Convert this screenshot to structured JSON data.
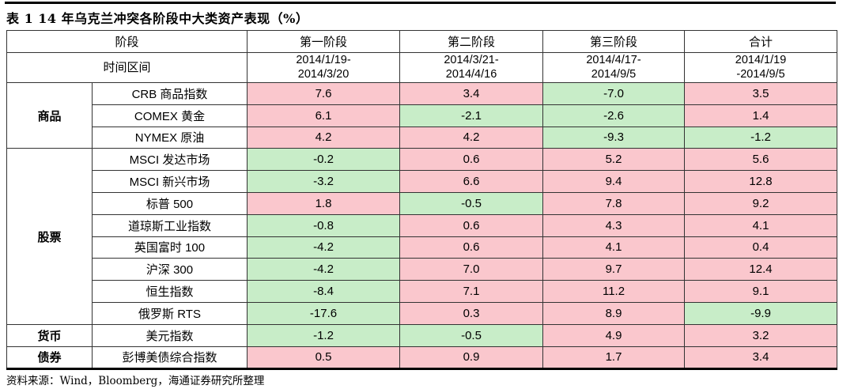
{
  "title": "表 1 14 年乌克兰冲突各阶段中大类资产表现（%）",
  "source_note": "资料来源：Wind，Bloomberg，海通证券研究所整理",
  "colors": {
    "positive_bg": "#fac7cd",
    "positive_text": "#c00000",
    "negative_bg": "#c8edc8",
    "negative_text": "#1e8a1e",
    "border": "#333333",
    "rule": "#000000"
  },
  "table": {
    "stage_header_label": "阶段",
    "period_header_label": "时间区间",
    "stages": [
      {
        "name": "第一阶段",
        "period_line1": "2014/1/19-",
        "period_line2": "2014/3/20"
      },
      {
        "name": "第二阶段",
        "period_line1": "2014/3/21-",
        "period_line2": "2014/4/16"
      },
      {
        "name": "第三阶段",
        "period_line1": "2014/4/17-",
        "period_line2": "2014/9/5"
      },
      {
        "name": "合计",
        "period_line1": "2014/1/19",
        "period_line2": "-2014/9/5"
      }
    ],
    "groups": [
      {
        "category": "商品",
        "rows": [
          {
            "asset": "CRB 商品指数",
            "values": [
              "7.6",
              "3.4",
              "-7.0",
              "3.5"
            ]
          },
          {
            "asset": "COMEX 黄金",
            "values": [
              "6.1",
              "-2.1",
              "-2.6",
              "1.4"
            ]
          },
          {
            "asset": "NYMEX 原油",
            "values": [
              "4.2",
              "4.2",
              "-9.3",
              "-1.2"
            ]
          }
        ]
      },
      {
        "category": "股票",
        "rows": [
          {
            "asset": "MSCI 发达市场",
            "values": [
              "-0.2",
              "0.6",
              "5.2",
              "5.6"
            ]
          },
          {
            "asset": "MSCI 新兴市场",
            "values": [
              "-3.2",
              "6.6",
              "9.4",
              "12.8"
            ]
          },
          {
            "asset": "标普 500",
            "values": [
              "1.8",
              "-0.5",
              "7.8",
              "9.2"
            ]
          },
          {
            "asset": "道琼斯工业指数",
            "values": [
              "-0.8",
              "0.6",
              "4.3",
              "4.1"
            ]
          },
          {
            "asset": "英国富时 100",
            "values": [
              "-4.2",
              "0.6",
              "4.1",
              "0.4"
            ]
          },
          {
            "asset": "沪深 300",
            "values": [
              "-4.2",
              "7.0",
              "9.7",
              "12.4"
            ]
          },
          {
            "asset": "恒生指数",
            "values": [
              "-8.4",
              "7.1",
              "11.2",
              "9.1"
            ]
          },
          {
            "asset": "俄罗斯 RTS",
            "values": [
              "-17.6",
              "0.3",
              "8.9",
              "-9.9"
            ]
          }
        ]
      },
      {
        "category": "货币",
        "rows": [
          {
            "asset": "美元指数",
            "values": [
              "-1.2",
              "-0.5",
              "4.9",
              "3.2"
            ]
          }
        ]
      },
      {
        "category": "债券",
        "rows": [
          {
            "asset": "彭博美债综合指数",
            "values": [
              "0.5",
              "0.9",
              "1.7",
              "3.4"
            ]
          }
        ]
      }
    ]
  }
}
